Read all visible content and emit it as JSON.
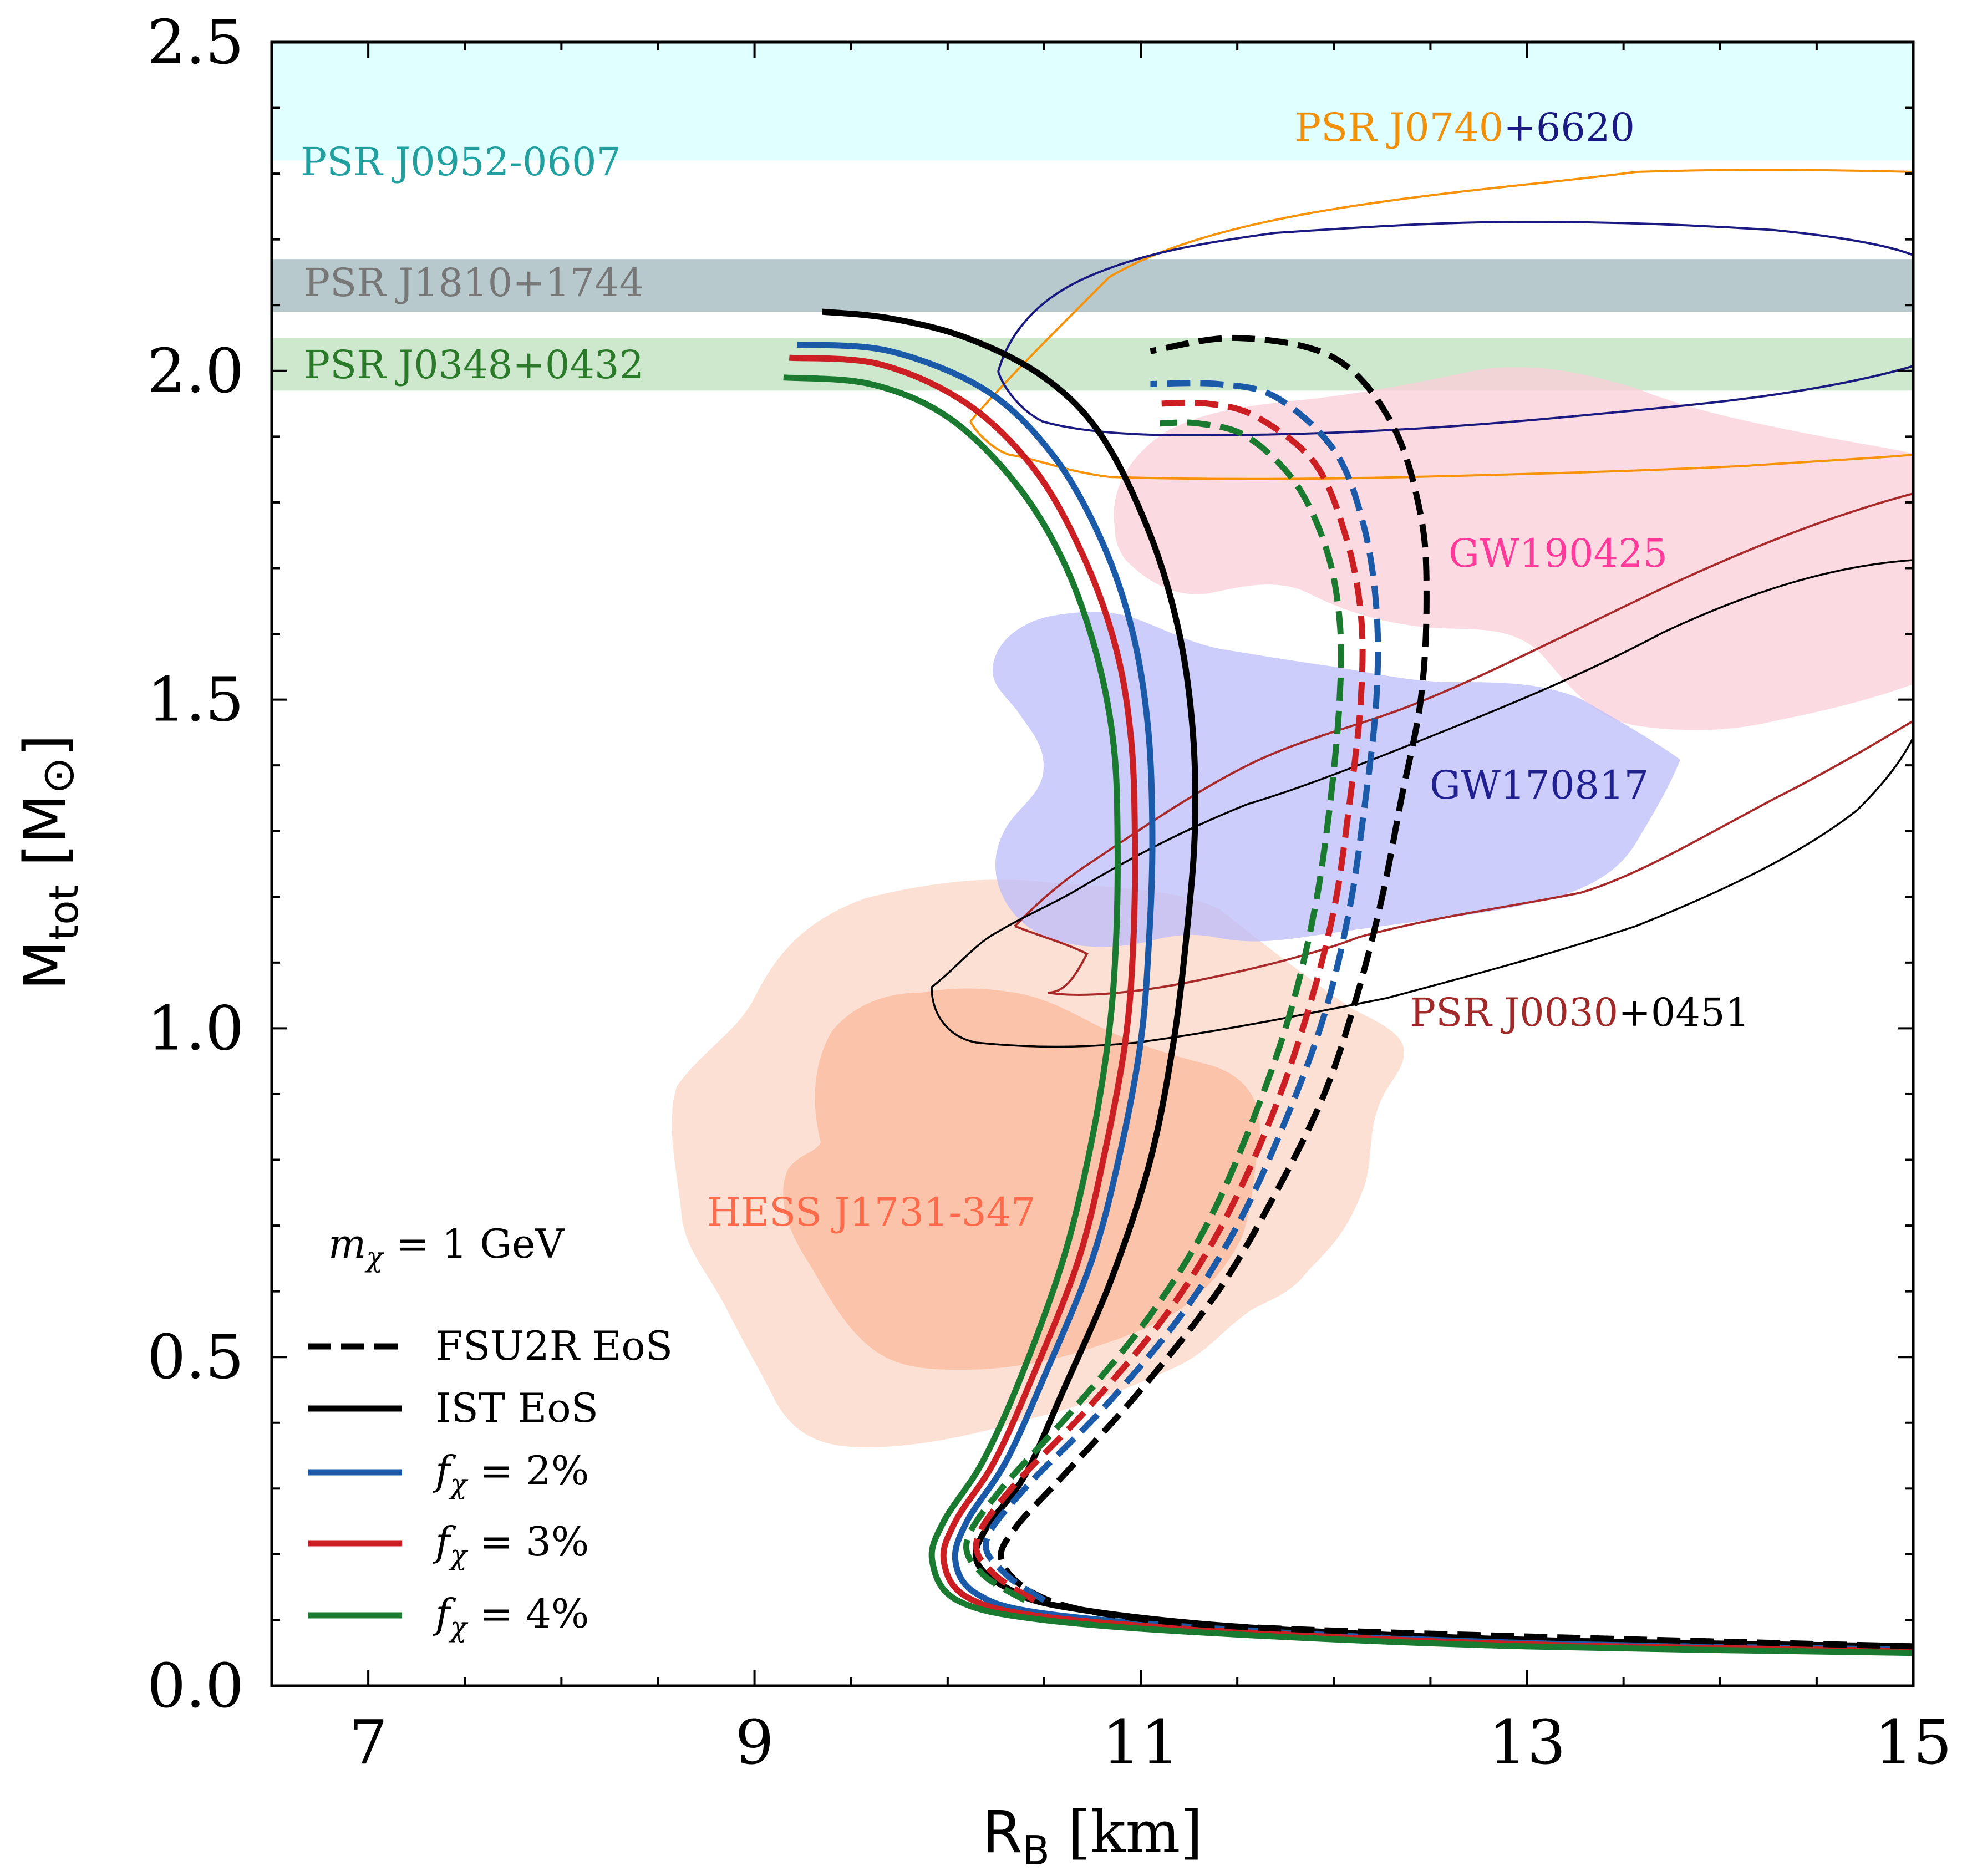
{
  "chart_data": {
    "type": "line",
    "xlabel_main": "R",
    "xlabel_sub": "B",
    "xlabel_unit": "[km]",
    "ylabel_main": "M",
    "ylabel_sub": "tot",
    "ylabel_unit": "[M",
    "ylabel_unit_symbol": "⊙",
    "ylabel_unit_close": "]",
    "xlim": [
      6.5,
      15
    ],
    "ylim": [
      0,
      2.5
    ],
    "xticks": [
      7,
      9,
      11,
      13,
      15
    ],
    "xtick_labels": [
      "7",
      "9",
      "11",
      "13",
      "15"
    ],
    "yticks": [
      0,
      0.5,
      1.0,
      1.5,
      2.0,
      2.5
    ],
    "ytick_labels": [
      "0.0",
      "0.5",
      "1.0",
      "1.5",
      "2.0",
      "2.5"
    ],
    "annotation": {
      "prefix": "m",
      "sub": "χ",
      "suffix": " = 1 GeV"
    },
    "bands": [
      {
        "name": "PSR J0952-0607",
        "ymin": 2.32,
        "ymax": 2.5,
        "color": "#e0ffff",
        "label_color": "#22a0a0"
      },
      {
        "name": "PSR J1810+1744",
        "ymin": 2.09,
        "ymax": 2.17,
        "color": "#b7c9cd",
        "label_color": "#777777"
      },
      {
        "name": "PSR J0348+0432",
        "ymin": 1.97,
        "ymax": 2.05,
        "color": "#cde8cd",
        "label_color": "#2a7a2a"
      }
    ],
    "region_labels": [
      {
        "name_a": "PSR J0740",
        "name_b": "+6620",
        "color_a": "#f0900a",
        "color_b": "#1a1a80"
      },
      {
        "name": "GW190425",
        "color": "#ff3a9a"
      },
      {
        "name": "GW170817",
        "color": "#202090"
      },
      {
        "name_a": "PSR J0030",
        "name_b": "+0451",
        "color_a": "#a02a2a",
        "color_b": "#000000"
      },
      {
        "name": "HESS J1731-347",
        "color": "#ff6a4a"
      }
    ],
    "legend": [
      {
        "label": "FSU2R EoS",
        "style": "dashed",
        "color": "#000000"
      },
      {
        "label": "IST EoS",
        "style": "solid",
        "color": "#000000"
      },
      {
        "label_prefix": "f",
        "label_sub": "χ",
        "label_suffix": " = 2%",
        "style": "solid",
        "color": "#1a5aa8"
      },
      {
        "label_prefix": "f",
        "label_sub": "χ",
        "label_suffix": " = 3%",
        "style": "solid",
        "color": "#cc1f24"
      },
      {
        "label_prefix": "f",
        "label_sub": "χ",
        "label_suffix": " = 4%",
        "style": "solid",
        "color": "#1a7a30"
      }
    ],
    "series": [
      {
        "name": "IST EoS",
        "dashed": false,
        "color": "#000000",
        "points": [
          [
            15.0,
            0.06
          ],
          [
            13.0,
            0.07
          ],
          [
            11.5,
            0.09
          ],
          [
            10.6,
            0.12
          ],
          [
            10.3,
            0.15
          ],
          [
            10.15,
            0.19
          ],
          [
            10.2,
            0.24
          ],
          [
            10.4,
            0.32
          ],
          [
            10.6,
            0.45
          ],
          [
            10.85,
            0.62
          ],
          [
            11.05,
            0.8
          ],
          [
            11.17,
            0.98
          ],
          [
            11.24,
            1.15
          ],
          [
            11.28,
            1.3
          ],
          [
            11.27,
            1.45
          ],
          [
            11.2,
            1.6
          ],
          [
            11.05,
            1.75
          ],
          [
            10.8,
            1.9
          ],
          [
            10.5,
            1.99
          ],
          [
            10.1,
            2.05
          ],
          [
            9.7,
            2.08
          ],
          [
            9.35,
            2.09
          ]
        ]
      },
      {
        "name": "f = 2% IST",
        "dashed": false,
        "color": "#1a5aa8",
        "points": [
          [
            15.0,
            0.055
          ],
          [
            13.0,
            0.065
          ],
          [
            11.5,
            0.085
          ],
          [
            10.5,
            0.11
          ],
          [
            10.15,
            0.14
          ],
          [
            10.04,
            0.19
          ],
          [
            10.1,
            0.25
          ],
          [
            10.3,
            0.34
          ],
          [
            10.5,
            0.47
          ],
          [
            10.75,
            0.65
          ],
          [
            10.9,
            0.82
          ],
          [
            11.0,
            0.98
          ],
          [
            11.04,
            1.12
          ],
          [
            11.06,
            1.28
          ],
          [
            11.04,
            1.45
          ],
          [
            10.96,
            1.6
          ],
          [
            10.8,
            1.74
          ],
          [
            10.55,
            1.87
          ],
          [
            10.2,
            1.97
          ],
          [
            9.7,
            2.03
          ],
          [
            9.22,
            2.04
          ]
        ]
      },
      {
        "name": "f = 3% IST",
        "dashed": false,
        "color": "#cc1f24",
        "points": [
          [
            15.0,
            0.053
          ],
          [
            13.0,
            0.063
          ],
          [
            11.5,
            0.082
          ],
          [
            10.5,
            0.105
          ],
          [
            10.1,
            0.135
          ],
          [
            9.98,
            0.19
          ],
          [
            10.04,
            0.25
          ],
          [
            10.24,
            0.34
          ],
          [
            10.44,
            0.47
          ],
          [
            10.68,
            0.65
          ],
          [
            10.82,
            0.82
          ],
          [
            10.92,
            0.98
          ],
          [
            10.96,
            1.12
          ],
          [
            10.97,
            1.28
          ],
          [
            10.95,
            1.44
          ],
          [
            10.87,
            1.58
          ],
          [
            10.7,
            1.72
          ],
          [
            10.45,
            1.85
          ],
          [
            10.1,
            1.95
          ],
          [
            9.65,
            2.01
          ],
          [
            9.18,
            2.02
          ]
        ]
      },
      {
        "name": "f = 4% IST",
        "dashed": false,
        "color": "#1a7a30",
        "points": [
          [
            15.0,
            0.05
          ],
          [
            13.0,
            0.06
          ],
          [
            11.5,
            0.078
          ],
          [
            10.5,
            0.1
          ],
          [
            10.05,
            0.13
          ],
          [
            9.92,
            0.19
          ],
          [
            9.98,
            0.25
          ],
          [
            10.18,
            0.34
          ],
          [
            10.38,
            0.47
          ],
          [
            10.6,
            0.65
          ],
          [
            10.74,
            0.82
          ],
          [
            10.83,
            0.98
          ],
          [
            10.87,
            1.12
          ],
          [
            10.88,
            1.28
          ],
          [
            10.86,
            1.43
          ],
          [
            10.77,
            1.57
          ],
          [
            10.6,
            1.71
          ],
          [
            10.35,
            1.83
          ],
          [
            10.0,
            1.93
          ],
          [
            9.6,
            1.98
          ],
          [
            9.15,
            1.99
          ]
        ]
      },
      {
        "name": "FSU2R EoS",
        "dashed": true,
        "color": "#000000",
        "points": [
          [
            15.0,
            0.06
          ],
          [
            13.0,
            0.075
          ],
          [
            11.5,
            0.09
          ],
          [
            10.8,
            0.11
          ],
          [
            10.45,
            0.14
          ],
          [
            10.28,
            0.19
          ],
          [
            10.35,
            0.24
          ],
          [
            10.6,
            0.32
          ],
          [
            11.0,
            0.45
          ],
          [
            11.4,
            0.6
          ],
          [
            11.7,
            0.75
          ],
          [
            11.95,
            0.9
          ],
          [
            12.12,
            1.05
          ],
          [
            12.25,
            1.2
          ],
          [
            12.35,
            1.35
          ],
          [
            12.45,
            1.5
          ],
          [
            12.48,
            1.65
          ],
          [
            12.45,
            1.78
          ],
          [
            12.3,
            1.92
          ],
          [
            12.0,
            2.02
          ],
          [
            11.5,
            2.05
          ],
          [
            11.05,
            2.03
          ]
        ]
      },
      {
        "name": "f = 2% FSU2R",
        "dashed": true,
        "color": "#1a5aa8",
        "points": [
          [
            10.5,
            0.13
          ],
          [
            10.3,
            0.17
          ],
          [
            10.2,
            0.22
          ],
          [
            10.4,
            0.3
          ],
          [
            10.8,
            0.42
          ],
          [
            11.2,
            0.56
          ],
          [
            11.5,
            0.7
          ],
          [
            11.75,
            0.86
          ],
          [
            11.95,
            1.02
          ],
          [
            12.08,
            1.18
          ],
          [
            12.16,
            1.34
          ],
          [
            12.22,
            1.5
          ],
          [
            12.22,
            1.64
          ],
          [
            12.15,
            1.77
          ],
          [
            12.0,
            1.88
          ],
          [
            11.7,
            1.96
          ],
          [
            11.4,
            1.98
          ],
          [
            11.05,
            1.98
          ]
        ]
      },
      {
        "name": "f = 3% FSU2R",
        "dashed": true,
        "color": "#cc1f24",
        "points": [
          [
            10.45,
            0.13
          ],
          [
            10.24,
            0.17
          ],
          [
            10.15,
            0.22
          ],
          [
            10.33,
            0.3
          ],
          [
            10.72,
            0.42
          ],
          [
            11.12,
            0.56
          ],
          [
            11.42,
            0.7
          ],
          [
            11.67,
            0.86
          ],
          [
            11.86,
            1.02
          ],
          [
            12.0,
            1.18
          ],
          [
            12.08,
            1.34
          ],
          [
            12.14,
            1.5
          ],
          [
            12.14,
            1.63
          ],
          [
            12.06,
            1.75
          ],
          [
            11.9,
            1.86
          ],
          [
            11.6,
            1.93
          ],
          [
            11.35,
            1.95
          ],
          [
            11.08,
            1.95
          ]
        ]
      },
      {
        "name": "f = 4% FSU2R",
        "dashed": true,
        "color": "#1a7a30",
        "points": [
          [
            10.4,
            0.13
          ],
          [
            10.18,
            0.17
          ],
          [
            10.1,
            0.22
          ],
          [
            10.28,
            0.3
          ],
          [
            10.65,
            0.42
          ],
          [
            11.04,
            0.56
          ],
          [
            11.34,
            0.7
          ],
          [
            11.58,
            0.86
          ],
          [
            11.77,
            1.02
          ],
          [
            11.9,
            1.18
          ],
          [
            11.98,
            1.34
          ],
          [
            12.03,
            1.5
          ],
          [
            12.03,
            1.62
          ],
          [
            11.96,
            1.73
          ],
          [
            11.8,
            1.83
          ],
          [
            11.55,
            1.9
          ],
          [
            11.3,
            1.92
          ],
          [
            11.1,
            1.92
          ]
        ]
      }
    ]
  }
}
